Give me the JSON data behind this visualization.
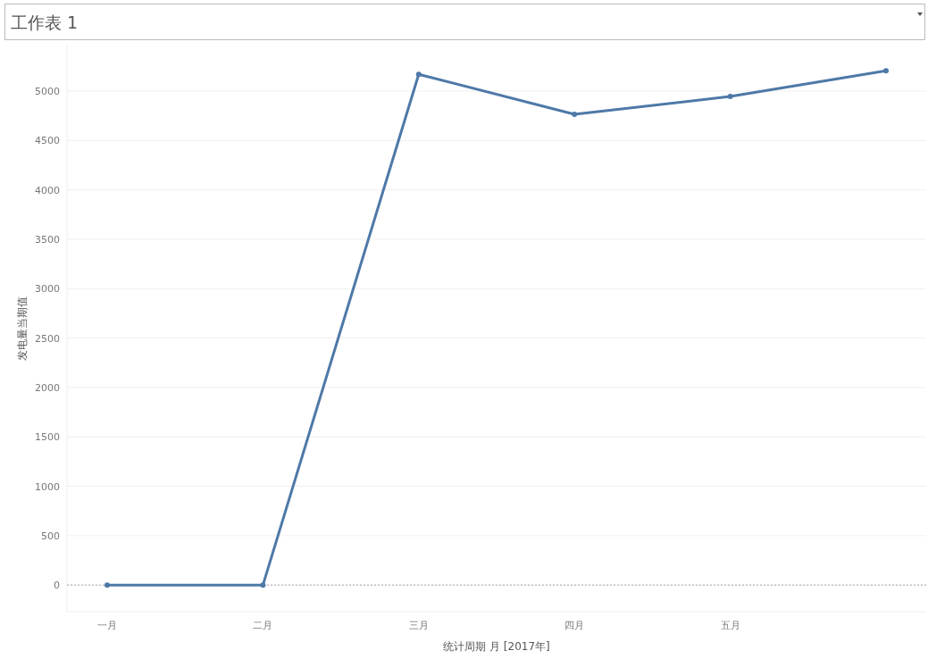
{
  "chart_data": {
    "type": "line",
    "title": "工作表 1",
    "xlabel": "统计周期 月 [2017年]",
    "ylabel": "发电量当期值",
    "categories": [
      "一月",
      "二月",
      "三月",
      "四月",
      "五月",
      null
    ],
    "series": [
      {
        "color": "#4e79a7",
        "values": [
          0,
          0,
          5170,
          4765,
          4945,
          5205
        ]
      }
    ],
    "ylim": [
      -270,
      5470
    ],
    "yticks": [
      0,
      500,
      1000,
      1500,
      2000,
      2500,
      3000,
      3500,
      4000,
      4500,
      5000
    ],
    "grid": "y",
    "marker": "circle",
    "line_style": "solid",
    "ref_lines": [
      {
        "axis": "y",
        "value": 0,
        "color": "#aaaaaa",
        "line_style": "dotted"
      }
    ]
  }
}
